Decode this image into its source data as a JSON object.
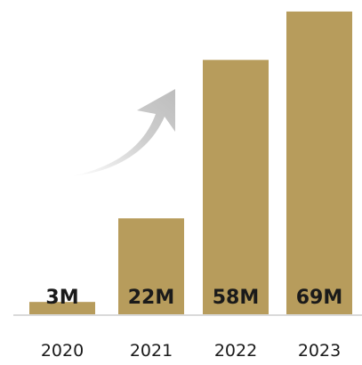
{
  "chart_data": {
    "type": "bar",
    "categories": [
      "2020",
      "2021",
      "2022",
      "2023"
    ],
    "values": [
      3,
      22,
      58,
      69
    ],
    "data_labels": [
      "3M",
      "22M",
      "58M",
      "69M"
    ],
    "title": "",
    "xlabel": "",
    "ylabel": "",
    "ylim": [
      0,
      70
    ],
    "grid": false,
    "legend": "none",
    "colors": {
      "bar": "#b79c5c",
      "arrow": "#c8c8c8",
      "baseline": "#d9d9d9",
      "text": "#1a1a1a"
    },
    "annotations": [
      {
        "type": "growth-arrow",
        "icon": "curved-up-arrow"
      }
    ]
  }
}
